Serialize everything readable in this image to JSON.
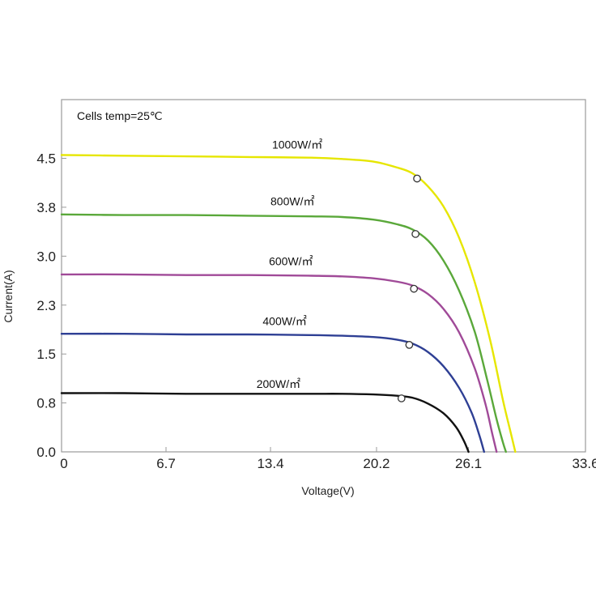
{
  "chart_data": {
    "type": "line",
    "title": "",
    "annotation": "Cells temp=25℃",
    "xlabel": "Voltage(V)",
    "ylabel": "Current(A)",
    "xlim": [
      0,
      33.6
    ],
    "ylim": [
      0,
      5.4
    ],
    "x_ticks": [
      "0",
      "6.7",
      "13.4",
      "20.2",
      "26.1",
      "33.6"
    ],
    "x_tick_values": [
      0,
      6.7,
      13.4,
      20.2,
      26.1,
      33.6
    ],
    "y_ticks": [
      "0.0",
      "0.8",
      "1.5",
      "2.3",
      "3.0",
      "3.8",
      "4.5"
    ],
    "y_tick_values": [
      0.0,
      0.75,
      1.5,
      2.25,
      3.0,
      3.75,
      4.5
    ],
    "grid": false,
    "series": [
      {
        "name": "1000W/㎡",
        "color": "#e6e600",
        "points": [
          [
            0,
            4.55
          ],
          [
            4,
            4.54
          ],
          [
            8,
            4.53
          ],
          [
            12,
            4.52
          ],
          [
            16,
            4.51
          ],
          [
            18,
            4.49
          ],
          [
            20,
            4.45
          ],
          [
            21.5,
            4.36
          ],
          [
            22.5,
            4.27
          ],
          [
            23.5,
            4.07
          ],
          [
            24.5,
            3.76
          ],
          [
            25.5,
            3.28
          ],
          [
            26.5,
            2.6
          ],
          [
            27.5,
            1.7
          ],
          [
            28.3,
            0.8
          ],
          [
            28.8,
            0.3
          ],
          [
            29.1,
            0
          ]
        ],
        "mpp": [
          22.8,
          4.19
        ]
      },
      {
        "name": "800W/㎡",
        "color": "#5aa83a",
        "points": [
          [
            0,
            3.64
          ],
          [
            4,
            3.63
          ],
          [
            8,
            3.63
          ],
          [
            12,
            3.62
          ],
          [
            16,
            3.61
          ],
          [
            18,
            3.6
          ],
          [
            20,
            3.56
          ],
          [
            21.5,
            3.49
          ],
          [
            22.5,
            3.41
          ],
          [
            23.5,
            3.24
          ],
          [
            24.5,
            2.93
          ],
          [
            25.5,
            2.47
          ],
          [
            26.5,
            1.84
          ],
          [
            27.3,
            1.1
          ],
          [
            27.9,
            0.5
          ],
          [
            28.3,
            0.15
          ],
          [
            28.5,
            0
          ]
        ],
        "mpp": [
          22.7,
          3.34
        ]
      },
      {
        "name": "600W/㎡",
        "color": "#a04a98",
        "points": [
          [
            0,
            2.72
          ],
          [
            4,
            2.72
          ],
          [
            8,
            2.71
          ],
          [
            12,
            2.71
          ],
          [
            16,
            2.7
          ],
          [
            18,
            2.69
          ],
          [
            20,
            2.66
          ],
          [
            21.5,
            2.61
          ],
          [
            22.5,
            2.55
          ],
          [
            23.5,
            2.42
          ],
          [
            24.5,
            2.19
          ],
          [
            25.5,
            1.83
          ],
          [
            26.5,
            1.28
          ],
          [
            27.2,
            0.72
          ],
          [
            27.6,
            0.3
          ],
          [
            27.9,
            0
          ]
        ],
        "mpp": [
          22.6,
          2.5
        ]
      },
      {
        "name": "400W/㎡",
        "color": "#2e3f94",
        "points": [
          [
            0,
            1.81
          ],
          [
            4,
            1.81
          ],
          [
            8,
            1.8
          ],
          [
            12,
            1.8
          ],
          [
            16,
            1.79
          ],
          [
            18,
            1.78
          ],
          [
            20,
            1.76
          ],
          [
            21.5,
            1.72
          ],
          [
            22.5,
            1.66
          ],
          [
            23.5,
            1.53
          ],
          [
            24.5,
            1.31
          ],
          [
            25.5,
            0.98
          ],
          [
            26.3,
            0.6
          ],
          [
            26.8,
            0.25
          ],
          [
            27.1,
            0
          ]
        ],
        "mpp": [
          22.3,
          1.64
        ]
      },
      {
        "name": "200W/㎡",
        "color": "#111111",
        "points": [
          [
            0,
            0.9
          ],
          [
            4,
            0.9
          ],
          [
            8,
            0.89
          ],
          [
            12,
            0.89
          ],
          [
            16,
            0.89
          ],
          [
            18,
            0.89
          ],
          [
            20,
            0.88
          ],
          [
            21.5,
            0.86
          ],
          [
            22.5,
            0.83
          ],
          [
            23.5,
            0.74
          ],
          [
            24.5,
            0.59
          ],
          [
            25.3,
            0.38
          ],
          [
            25.8,
            0.17
          ],
          [
            26.1,
            0
          ]
        ],
        "mpp": [
          21.8,
          0.82
        ]
      }
    ],
    "series_label_positions": [
      [
        13.5,
        4.65
      ],
      [
        13.4,
        3.78
      ],
      [
        13.3,
        2.86
      ],
      [
        12.9,
        1.94
      ],
      [
        12.5,
        0.98
      ]
    ]
  }
}
